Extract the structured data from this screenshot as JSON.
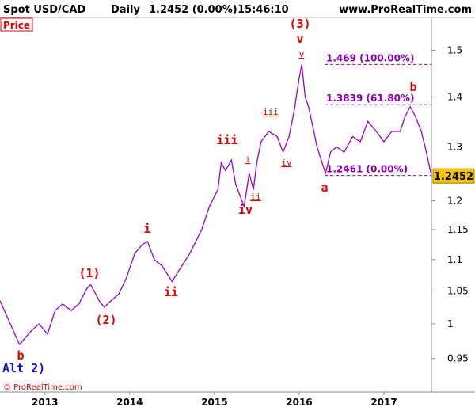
{
  "chart_data": {
    "type": "line",
    "title": "Spot USD/CAD",
    "period": "Daily",
    "quote": "1.2452 (0.00%)",
    "time": "15:46:10",
    "source": "www.ProRealTime.com",
    "panel_label": "Price",
    "copyright": "© ProRealTime.com",
    "ylog": true,
    "color": "#9900cc",
    "x": [
      2012.47,
      2012.7,
      2012.84,
      2012.93,
      2013.03,
      2013.12,
      2013.21,
      2013.31,
      2013.4,
      2013.5,
      2013.54,
      2013.64,
      2013.7,
      2013.78,
      2013.87,
      2013.96,
      2014.06,
      2014.15,
      2014.21,
      2014.29,
      2014.38,
      2014.5,
      2014.57,
      2014.71,
      2014.85,
      2014.94,
      2015.04,
      2015.08,
      2015.13,
      2015.2,
      2015.25,
      2015.3,
      2015.35,
      2015.41,
      2015.46,
      2015.5,
      2015.55,
      2015.64,
      2015.74,
      2015.81,
      2015.88,
      2015.94,
      2016.0,
      2016.03,
      2016.07,
      2016.11,
      2016.16,
      2016.21,
      2016.25,
      2016.31,
      2016.37,
      2016.44,
      2016.53,
      2016.63,
      2016.72,
      2016.81,
      2016.91,
      2017.0,
      2017.09,
      2017.19,
      2017.25,
      2017.31,
      2017.37,
      2017.44,
      2017.5,
      2017.56
    ],
    "values": [
      1.035,
      0.97,
      0.99,
      1.0,
      0.985,
      1.02,
      1.03,
      1.02,
      1.03,
      1.055,
      1.06,
      1.035,
      1.025,
      1.035,
      1.045,
      1.07,
      1.11,
      1.125,
      1.13,
      1.1,
      1.09,
      1.065,
      1.08,
      1.11,
      1.15,
      1.19,
      1.22,
      1.27,
      1.255,
      1.275,
      1.23,
      1.21,
      1.19,
      1.25,
      1.22,
      1.27,
      1.31,
      1.33,
      1.32,
      1.29,
      1.32,
      1.37,
      1.44,
      1.469,
      1.4,
      1.38,
      1.34,
      1.3,
      1.28,
      1.25,
      1.29,
      1.3,
      1.29,
      1.32,
      1.31,
      1.35,
      1.33,
      1.31,
      1.33,
      1.33,
      1.36,
      1.38,
      1.36,
      1.33,
      1.29,
      1.2452
    ],
    "last_price": 1.2452,
    "xlim": [
      2012.47,
      2017.56
    ],
    "xticks": [
      2013,
      2014,
      2015,
      2016,
      2017
    ],
    "ylim": [
      0.904,
      1.575
    ],
    "yticks": [
      0.95,
      1,
      1.05,
      1.1,
      1.15,
      1.2,
      1.3,
      1.4,
      1.5
    ],
    "levels": [
      {
        "value": 1.469,
        "label": "1.469 (100.00%)"
      },
      {
        "value": 1.3839,
        "label": "1.3839 (61.80%)"
      },
      {
        "value": 1.2461,
        "label": "1.2461 (0.00%)"
      }
    ],
    "annotations": [
      "(3)",
      "v",
      "v",
      "iii",
      "iii",
      "i",
      "ii",
      "iv",
      "iv",
      "i",
      "ii",
      "(1)",
      "(2)",
      "b",
      "a",
      "b",
      "Alt 2)"
    ]
  }
}
